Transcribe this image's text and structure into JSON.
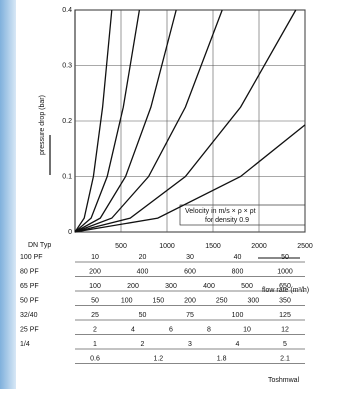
{
  "chart_data": {
    "type": "line",
    "ylabel": "pressure drop (bar)",
    "xlim": [
      0,
      2500
    ],
    "ylim": [
      0,
      0.4
    ],
    "xticks": [
      500,
      1000,
      1500,
      2000,
      2500
    ],
    "yticks": [
      0,
      0.1,
      0.2,
      0.3,
      0.4
    ],
    "grid": true,
    "series": [
      {
        "color": "#111",
        "x": [
          0,
          100,
          200,
          300,
          400
        ],
        "values": [
          0,
          0.025,
          0.1,
          0.225,
          0.4
        ]
      },
      {
        "color": "#111",
        "x": [
          0,
          175,
          350,
          525,
          700
        ],
        "values": [
          0,
          0.025,
          0.1,
          0.225,
          0.4
        ]
      },
      {
        "color": "#111",
        "x": [
          0,
          275,
          550,
          825,
          1100
        ],
        "values": [
          0,
          0.025,
          0.1,
          0.225,
          0.4
        ]
      },
      {
        "color": "#111",
        "x": [
          0,
          400,
          800,
          1200,
          1600
        ],
        "values": [
          0,
          0.025,
          0.1,
          0.225,
          0.4
        ]
      },
      {
        "color": "#111",
        "x": [
          0,
          600,
          1200,
          1800,
          2400
        ],
        "values": [
          0,
          0.025,
          0.1,
          0.225,
          0.4
        ]
      },
      {
        "color": "#111",
        "x": [
          0,
          900,
          1800,
          2500
        ],
        "values": [
          0,
          0.025,
          0.1,
          0.193
        ]
      }
    ],
    "annotations": [
      "Velocity in m/s × ρ × ρt",
      "for density 0.9",
      "flow rate (m³/h)",
      "Toshmwal"
    ],
    "dn_header": "DN Typ",
    "nomogram": [
      {
        "label": "100 PF",
        "values": [
          10,
          20,
          30,
          40,
          50
        ]
      },
      {
        "label": "80 PF",
        "values": [
          200,
          400,
          600,
          800,
          1000
        ]
      },
      {
        "label": "65 PF",
        "values": [
          100,
          200,
          300,
          400,
          500,
          650
        ]
      },
      {
        "label": "50 PF",
        "values": [
          50,
          100,
          150,
          200,
          250,
          300,
          350
        ]
      },
      {
        "label": "32/40",
        "values": [
          25,
          50,
          75,
          100,
          125
        ]
      },
      {
        "label": "25 PF",
        "values": [
          2,
          4,
          6,
          8,
          10,
          12
        ]
      },
      {
        "label": "1/4",
        "values": [
          1,
          2,
          3,
          4,
          5
        ]
      },
      {
        "label": "",
        "values": [
          0.6,
          1.2,
          1.8,
          2.1
        ]
      }
    ]
  }
}
